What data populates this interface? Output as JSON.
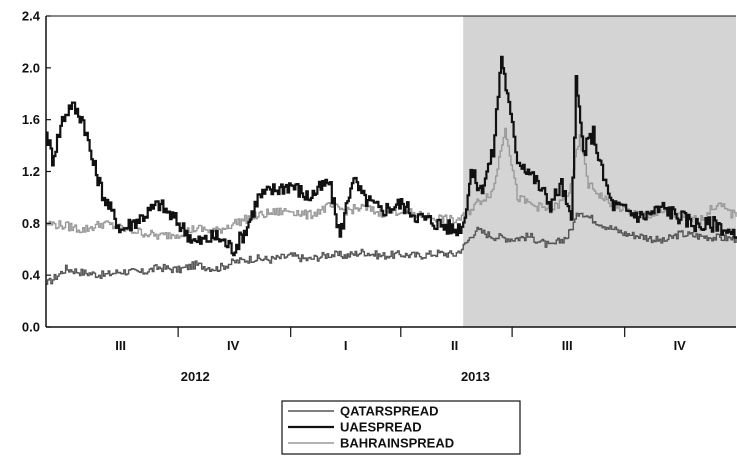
{
  "chart_data": {
    "type": "line",
    "title": "",
    "xlabel": "",
    "ylabel": "",
    "ylim": [
      0.0,
      2.4
    ],
    "y_ticks": [
      "0.0",
      "0.4",
      "0.8",
      "1.2",
      "1.6",
      "2.0",
      "2.4"
    ],
    "x_range": [
      "2012-06-15",
      "2013-12-31"
    ],
    "quarter_ticks": [
      {
        "label": "III",
        "x": "2012-08-15"
      },
      {
        "label": "IV",
        "x": "2012-11-15"
      },
      {
        "label": "I",
        "x": "2013-02-15"
      },
      {
        "label": "II",
        "x": "2013-05-15"
      },
      {
        "label": "III",
        "x": "2013-08-15"
      },
      {
        "label": "IV",
        "x": "2013-11-15"
      }
    ],
    "quarter_boundaries": [
      "2012-10-01",
      "2013-01-01",
      "2013-04-01",
      "2013-07-01",
      "2013-10-01"
    ],
    "year_labels": [
      {
        "label": "2012",
        "x": "2012-10-15"
      },
      {
        "label": "2013",
        "x": "2013-06-01"
      }
    ],
    "shaded_region": {
      "from": "2013-05-22",
      "to": "2013-12-31",
      "color": "#d4d4d4"
    },
    "grid": false,
    "legend_position": "bottom-center",
    "series": [
      {
        "name": "QATARSPREAD",
        "color": "#555555",
        "x": [
          "2012-06-15",
          "2012-07-01",
          "2012-07-15",
          "2012-08-01",
          "2012-08-15",
          "2012-09-01",
          "2012-09-15",
          "2012-10-01",
          "2012-10-15",
          "2012-11-01",
          "2012-11-15",
          "2012-12-01",
          "2012-12-15",
          "2013-01-01",
          "2013-01-15",
          "2013-02-01",
          "2013-02-15",
          "2013-03-01",
          "2013-03-15",
          "2013-04-01",
          "2013-04-15",
          "2013-05-01",
          "2013-05-15",
          "2013-05-22",
          "2013-06-01",
          "2013-06-15",
          "2013-07-01",
          "2013-07-15",
          "2013-08-01",
          "2013-08-15",
          "2013-08-25",
          "2013-09-01",
          "2013-09-15",
          "2013-10-01",
          "2013-10-15",
          "2013-11-01",
          "2013-11-15",
          "2013-12-01",
          "2013-12-15",
          "2013-12-31"
        ],
        "y": [
          0.33,
          0.45,
          0.42,
          0.4,
          0.43,
          0.42,
          0.46,
          0.44,
          0.48,
          0.45,
          0.5,
          0.53,
          0.52,
          0.55,
          0.52,
          0.56,
          0.55,
          0.58,
          0.55,
          0.56,
          0.55,
          0.57,
          0.56,
          0.62,
          0.75,
          0.7,
          0.68,
          0.7,
          0.62,
          0.7,
          0.9,
          0.85,
          0.78,
          0.72,
          0.7,
          0.66,
          0.72,
          0.7,
          0.69,
          0.68
        ]
      },
      {
        "name": "UAESPREAD",
        "color": "#111111",
        "x": [
          "2012-06-15",
          "2012-06-20",
          "2012-06-28",
          "2012-07-05",
          "2012-07-15",
          "2012-07-22",
          "2012-08-01",
          "2012-08-15",
          "2012-09-01",
          "2012-09-15",
          "2012-10-01",
          "2012-10-15",
          "2012-11-01",
          "2012-11-15",
          "2012-11-25",
          "2012-12-05",
          "2012-12-15",
          "2013-01-01",
          "2013-01-15",
          "2013-02-01",
          "2013-02-10",
          "2013-02-20",
          "2013-03-01",
          "2013-03-15",
          "2013-04-01",
          "2013-04-15",
          "2013-05-01",
          "2013-05-15",
          "2013-05-22",
          "2013-05-28",
          "2013-06-05",
          "2013-06-15",
          "2013-06-22",
          "2013-06-28",
          "2013-07-05",
          "2013-07-15",
          "2013-08-01",
          "2013-08-10",
          "2013-08-18",
          "2013-08-22",
          "2013-08-28",
          "2013-09-05",
          "2013-09-12",
          "2013-09-20",
          "2013-10-01",
          "2013-10-15",
          "2013-11-01",
          "2013-11-15",
          "2013-12-01",
          "2013-12-15",
          "2013-12-31"
        ],
        "y": [
          1.5,
          1.3,
          1.6,
          1.72,
          1.6,
          1.3,
          1.0,
          0.75,
          0.85,
          0.95,
          0.8,
          0.65,
          0.7,
          0.6,
          0.75,
          1.0,
          1.05,
          1.1,
          1.0,
          1.12,
          0.7,
          1.15,
          1.0,
          0.9,
          0.95,
          0.85,
          0.8,
          0.75,
          0.8,
          1.2,
          1.05,
          1.35,
          2.1,
          1.7,
          1.3,
          1.2,
          0.95,
          1.1,
          0.8,
          1.88,
          1.35,
          1.5,
          1.2,
          0.95,
          0.9,
          0.85,
          0.92,
          0.85,
          0.78,
          0.8,
          0.68
        ]
      },
      {
        "name": "BAHRAINSPREAD",
        "color": "#9a9a9a",
        "x": [
          "2012-06-15",
          "2012-07-01",
          "2012-07-15",
          "2012-08-01",
          "2012-08-15",
          "2012-09-01",
          "2012-09-15",
          "2012-10-01",
          "2012-10-15",
          "2012-11-01",
          "2012-11-15",
          "2012-12-01",
          "2012-12-15",
          "2013-01-01",
          "2013-01-15",
          "2013-02-01",
          "2013-02-15",
          "2013-03-01",
          "2013-03-15",
          "2013-04-01",
          "2013-04-15",
          "2013-05-01",
          "2013-05-15",
          "2013-05-22",
          "2013-06-01",
          "2013-06-15",
          "2013-06-25",
          "2013-07-05",
          "2013-07-15",
          "2013-08-01",
          "2013-08-15",
          "2013-08-25",
          "2013-09-01",
          "2013-09-15",
          "2013-10-01",
          "2013-10-15",
          "2013-11-01",
          "2013-11-15",
          "2013-12-01",
          "2013-12-15",
          "2013-12-31"
        ],
        "y": [
          0.8,
          0.78,
          0.75,
          0.8,
          0.76,
          0.73,
          0.7,
          0.72,
          0.76,
          0.74,
          0.8,
          0.85,
          0.88,
          0.9,
          0.86,
          0.93,
          0.9,
          0.92,
          0.88,
          0.9,
          0.86,
          0.84,
          0.82,
          0.85,
          0.95,
          1.05,
          1.55,
          1.0,
          0.95,
          0.9,
          1.0,
          1.45,
          1.1,
          0.98,
          0.9,
          0.86,
          0.88,
          0.85,
          0.82,
          0.95,
          0.85
        ]
      }
    ]
  }
}
